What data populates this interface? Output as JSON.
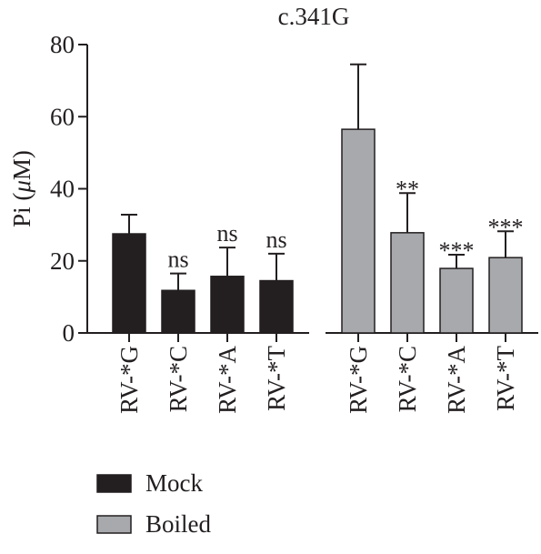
{
  "chart_data": {
    "type": "bar",
    "title": "c.341G",
    "ylabel": "Pi (μM)",
    "ylabel_parts": {
      "main": "Pi (",
      "greek": "μ",
      "unit": "M)"
    },
    "ylim": [
      0,
      80
    ],
    "yticks": [
      "0",
      "20",
      "40",
      "60",
      "80"
    ],
    "grid": false,
    "legend_position": "bottom-left",
    "series": [
      {
        "name": "Mock",
        "color": "#231f20",
        "categories": [
          "RV-*G",
          "RV-*C",
          "RV-*A",
          "RV-*T"
        ],
        "values": [
          27.5,
          11.8,
          15.7,
          14.5
        ],
        "errors": [
          5.3,
          4.7,
          8.0,
          7.5
        ],
        "annotations": [
          "",
          "ns",
          "ns",
          "ns"
        ]
      },
      {
        "name": "Boiled",
        "color": "#a7a9ac",
        "categories": [
          "RV-*G",
          "RV-*C",
          "RV-*A",
          "RV-*T"
        ],
        "values": [
          56.5,
          27.8,
          17.9,
          20.9
        ],
        "errors": [
          18.0,
          11.0,
          3.8,
          7.3
        ],
        "annotations": [
          "",
          "**",
          "***",
          "***"
        ]
      }
    ]
  }
}
